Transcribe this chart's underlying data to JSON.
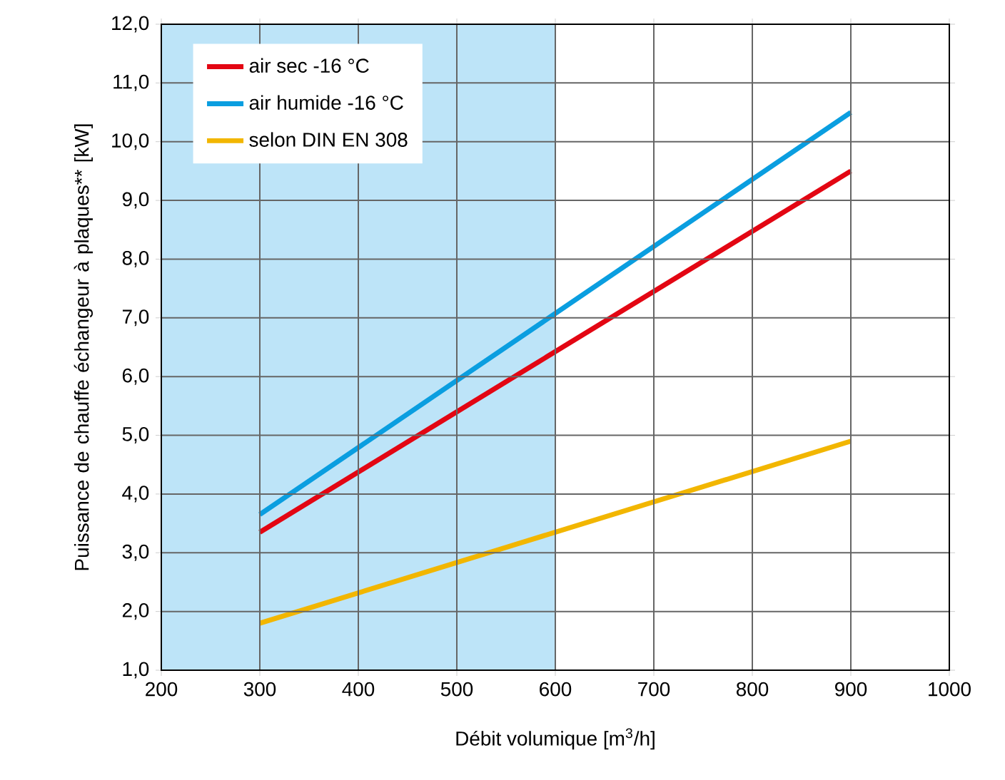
{
  "chart_data": {
    "type": "line",
    "xlabel": "Débit volumique [m$^{3}$/h]",
    "ylabel": "Puissance de chauffe échangeur à plaques** [kW]",
    "series": [
      {
        "name": "air sec -16 °C",
        "color": "#e30613",
        "values": [
          3.35,
          9.5
        ]
      },
      {
        "name": "air humide -16 °C",
        "color": "#0a9ee0",
        "values": [
          3.65,
          10.5
        ]
      },
      {
        "name": "selon DIN EN 308",
        "color": "#f2b600",
        "values": [
          1.8,
          4.9
        ]
      }
    ],
    "x": [
      300,
      900
    ],
    "xlim": [
      200,
      1000
    ],
    "xticks": [
      200,
      300,
      400,
      500,
      600,
      700,
      800,
      900,
      1000
    ],
    "ylim": [
      1,
      12
    ],
    "yticks": [
      {
        "value": 1,
        "label": "1,0"
      },
      {
        "value": 2,
        "label": "2,0"
      },
      {
        "value": 3,
        "label": "3,0"
      },
      {
        "value": 4,
        "label": "4,0"
      },
      {
        "value": 5,
        "label": "5,0"
      },
      {
        "value": 6,
        "label": "6,0"
      },
      {
        "value": 7,
        "label": "7,0"
      },
      {
        "value": 8,
        "label": "8,0"
      },
      {
        "value": 9,
        "label": "9,0"
      },
      {
        "value": 10,
        "label": "10,0"
      },
      {
        "value": 11,
        "label": "11,0"
      },
      {
        "value": 12,
        "label": "12,0"
      }
    ],
    "bands": [
      {
        "axis": "x",
        "from": 200,
        "to": 600,
        "color": "#bde4f8"
      }
    ],
    "grid": true,
    "legend": "top left",
    "line_style": "solid",
    "marker": "none"
  }
}
